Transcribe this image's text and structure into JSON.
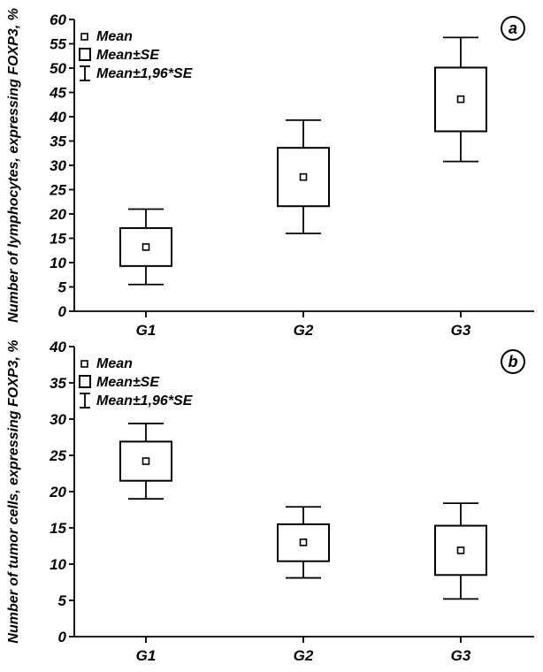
{
  "chart_data": [
    {
      "type": "box",
      "panel_label": "a",
      "ylabel": "Number of lymphocytes, expressing FOXP3, %",
      "ylim": [
        0,
        60
      ],
      "yticks": [
        0,
        5,
        10,
        15,
        20,
        25,
        30,
        35,
        40,
        45,
        50,
        55,
        60
      ],
      "categories": [
        "G1",
        "G2",
        "G3"
      ],
      "mean": [
        13.2,
        27.6,
        43.6
      ],
      "se_low": [
        9.3,
        21.6,
        37.0
      ],
      "se_high": [
        17.1,
        33.6,
        50.1
      ],
      "ci_low": [
        5.5,
        16.0,
        30.8
      ],
      "ci_high": [
        21.0,
        39.3,
        56.3
      ],
      "legend": [
        "Mean",
        "Mean±SE",
        "Mean±1,96*SE"
      ],
      "legend_position": "top-left"
    },
    {
      "type": "box",
      "panel_label": "b",
      "ylabel": "Number of tumor cells, expressing FOXP3, %",
      "ylim": [
        0,
        40
      ],
      "yticks": [
        0,
        5,
        10,
        15,
        20,
        25,
        30,
        35,
        40
      ],
      "categories": [
        "G1",
        "G2",
        "G3"
      ],
      "mean": [
        24.2,
        13.0,
        11.9
      ],
      "se_low": [
        21.5,
        10.4,
        8.5
      ],
      "se_high": [
        26.9,
        15.5,
        15.3
      ],
      "ci_low": [
        19.0,
        8.1,
        5.2
      ],
      "ci_high": [
        29.4,
        17.9,
        18.4
      ],
      "legend": [
        "Mean",
        "Mean±SE",
        "Mean±1,96*SE"
      ],
      "legend_position": "top-left"
    }
  ]
}
